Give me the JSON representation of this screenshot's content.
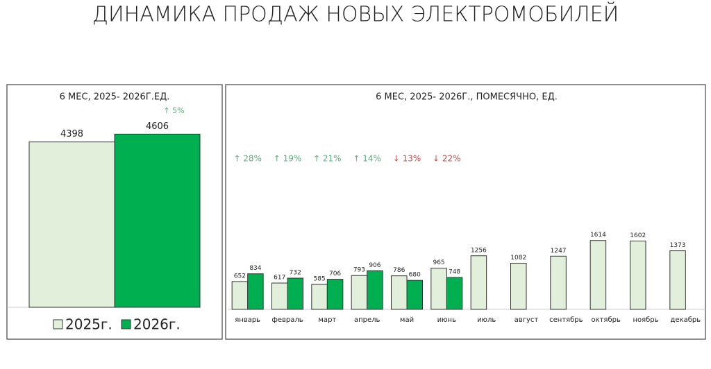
{
  "title": "ДИНАМИКА ПРОДАЖ НОВЫХ ЭЛЕКТРОМОБИЛЕЙ",
  "chart_data": [
    {
      "type": "bar",
      "title": "6 МЕС, 2025- 2026Г.ЕД.",
      "series": [
        {
          "name": "2025г.",
          "color": "#e2efda",
          "values": [
            4398
          ]
        },
        {
          "name": "2026г.",
          "color": "#00b050",
          "values": [
            4606
          ]
        }
      ],
      "annotations": [
        "↑ 5%"
      ],
      "annotation_colors": [
        "#5fae7c"
      ],
      "ylim": [
        0,
        5000
      ],
      "legend": "bottom"
    },
    {
      "type": "bar",
      "title": "6 МЕС, 2025- 2026Г., ПОМЕСЯЧНО, ЕД.",
      "categories": [
        "январь",
        "февраль",
        "март",
        "апрель",
        "май",
        "июнь",
        "июль",
        "август",
        "сентябрь",
        "октябрь",
        "ноябрь",
        "декабрь"
      ],
      "series": [
        {
          "color": "#e2efda",
          "values": [
            652,
            617,
            585,
            793,
            786,
            965,
            1256,
            1082,
            1247,
            1614,
            1602,
            1373
          ]
        },
        {
          "color": "#00b050",
          "values": [
            834,
            732,
            706,
            906,
            680,
            748,
            null,
            null,
            null,
            null,
            null,
            null
          ]
        }
      ],
      "annotations": [
        "↑ 28%",
        "↑ 19%",
        "↑ 21%",
        "↑ 14%",
        "↓ 13%",
        "↓ 22%"
      ],
      "annotation_colors": [
        "#5fae7c",
        "#5fae7c",
        "#5fae7c",
        "#5fae7c",
        "#c0504d",
        "#c0504d"
      ],
      "ylim": [
        0,
        4000
      ]
    }
  ]
}
